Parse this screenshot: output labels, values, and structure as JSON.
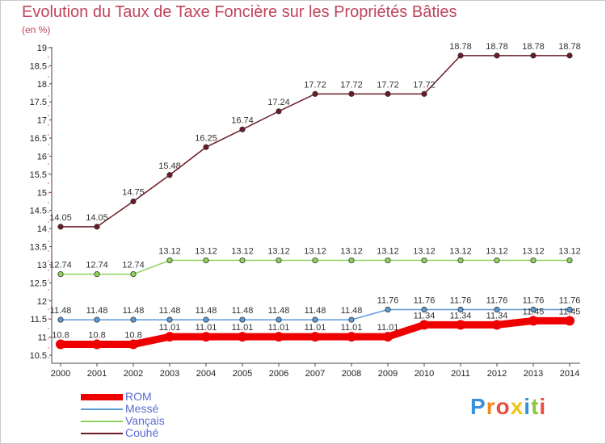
{
  "header": {
    "title": "Evolution du Taux de Taxe Foncière sur les Propriétés Bâties",
    "unit": "(en %)"
  },
  "brand": {
    "logo_letters": [
      "P",
      "r",
      "o",
      "x",
      "i",
      "t",
      "i"
    ],
    "logo_colors": [
      "#3b8fd9",
      "#f08a1c",
      "#e84d3d",
      "#f2c21b",
      "#3b8fd9",
      "#8cc63f",
      "#e84d3d"
    ]
  },
  "chart_data": {
    "type": "line",
    "title": "Evolution du Taux de Taxe Foncière sur les Propriétés Bâties",
    "ylabel": "(en %)",
    "xlabel": "",
    "ylim": [
      10.5,
      19
    ],
    "ytick_step": 0.5,
    "categories": [
      "2000",
      "2001",
      "2002",
      "2003",
      "2004",
      "2005",
      "2006",
      "2007",
      "2008",
      "2009",
      "2010",
      "2011",
      "2012",
      "2013",
      "2014"
    ],
    "series": [
      {
        "name": "ROM",
        "color": "#ee0000",
        "emphasis": "thick",
        "values": [
          10.8,
          10.8,
          10.8,
          11.01,
          11.01,
          11.01,
          11.01,
          11.01,
          11.01,
          11.01,
          11.34,
          11.34,
          11.34,
          11.45,
          11.45
        ],
        "labels": [
          "10.8",
          "10.8",
          "10.8",
          "11.01",
          "11.01",
          "11.01",
          "11.01",
          "11.01",
          "11.01",
          "11.01",
          "11.34",
          "11.34",
          "11.34",
          "11.45",
          "11.45"
        ]
      },
      {
        "name": "Messé",
        "color": "#5b9bd5",
        "emphasis": "thin",
        "values": [
          11.48,
          11.48,
          11.48,
          11.48,
          11.48,
          11.48,
          11.48,
          11.48,
          11.48,
          11.76,
          11.76,
          11.76,
          11.76,
          11.76,
          11.76
        ],
        "labels": [
          "11.48",
          "11.48",
          "11.48",
          "11.48",
          "11.48",
          "11.48",
          "11.48",
          "11.48",
          "11.48",
          "11.76",
          "11.76",
          "11.76",
          "11.76",
          "11.76",
          "11.76"
        ]
      },
      {
        "name": "Vançais",
        "color": "#8ed35a",
        "emphasis": "thin",
        "values": [
          12.74,
          12.74,
          12.74,
          13.12,
          13.12,
          13.12,
          13.12,
          13.12,
          13.12,
          13.12,
          13.12,
          13.12,
          13.12,
          13.12,
          13.12
        ],
        "labels": [
          "12.74",
          "12.74",
          "12.74",
          "13.12",
          "13.12",
          "13.12",
          "13.12",
          "13.12",
          "13.12",
          "13.12",
          "13.12",
          "13.12",
          "13.12",
          "13.12",
          "13.12"
        ]
      },
      {
        "name": "Couhé",
        "color": "#6b1a26",
        "emphasis": "thin",
        "values": [
          14.05,
          14.05,
          14.75,
          15.48,
          16.25,
          16.74,
          17.24,
          17.72,
          17.72,
          17.72,
          17.72,
          18.78,
          18.78,
          18.78,
          18.78
        ],
        "labels": [
          "14.05",
          "14.05",
          "14.75",
          "15.48",
          "16.25",
          "16.74",
          "17.24",
          "17.72",
          "17.72",
          "17.72",
          "17.72",
          "18.78",
          "18.78",
          "18.78",
          "18.78"
        ]
      }
    ],
    "grid": false,
    "legend_position": "bottom-left"
  }
}
